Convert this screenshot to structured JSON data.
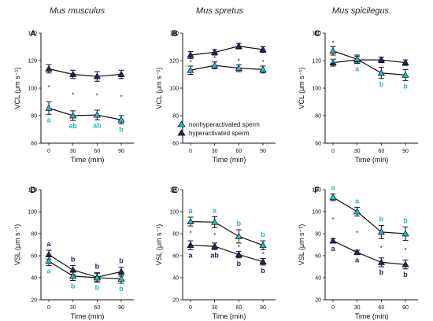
{
  "colors": {
    "nonhyper": "#2bb5c8",
    "hyper": "#23235e",
    "line": "#111111"
  },
  "titles": [
    "Mus musculus",
    "Mus spretus",
    "Mus spicilegus"
  ],
  "legend": {
    "nonhyper_label": "nonhyperactivated sperm",
    "hyper_label": "hyperactivated sperm",
    "placement": "inside panel B, lower-left"
  },
  "chart_data": [
    {
      "panel": "A",
      "type": "line",
      "column": 0,
      "row": 0,
      "xlabel": "Time (min)",
      "ylabel": "VCL (μm s⁻¹)",
      "x": [
        0,
        30,
        60,
        90
      ],
      "ylim": [
        60,
        140
      ],
      "yticks": [
        60,
        80,
        100,
        120,
        140
      ],
      "series": [
        {
          "name": "hyperactivated sperm",
          "key": "hyper",
          "values": [
            114,
            110,
            108.5,
            110
          ],
          "errors": [
            3,
            3,
            3.5,
            3
          ],
          "labels": [
            "",
            "",
            "",
            ""
          ]
        },
        {
          "name": "nonhyperactivated sperm",
          "key": "nonhyper",
          "values": [
            85.5,
            80,
            80.5,
            77
          ],
          "errors": [
            4.5,
            3.5,
            3.5,
            3
          ],
          "labels": [
            "a",
            "ab",
            "ab",
            "b"
          ]
        }
      ],
      "stars": [
        true,
        true,
        true,
        true
      ],
      "stars_pos": "between"
    },
    {
      "panel": "B",
      "type": "line",
      "column": 1,
      "row": 0,
      "xlabel": "Time (min)",
      "ylabel": "VCL (μm s⁻¹)",
      "x": [
        0,
        30,
        60,
        90
      ],
      "ylim": [
        60,
        140
      ],
      "yticks": [
        60,
        80,
        100,
        120,
        140
      ],
      "series": [
        {
          "name": "hyperactivated sperm",
          "key": "hyper",
          "values": [
            124,
            126,
            130.5,
            128
          ],
          "errors": [
            2.5,
            2,
            2,
            2
          ],
          "labels": [
            "",
            "",
            "",
            ""
          ]
        },
        {
          "name": "nonhyperactivated sperm",
          "key": "nonhyper",
          "values": [
            113,
            116.5,
            114.5,
            113.5
          ],
          "errors": [
            3,
            2.5,
            2.5,
            2.5
          ],
          "labels": [
            "",
            "",
            "",
            ""
          ]
        }
      ],
      "stars": [
        true,
        true,
        true,
        true
      ],
      "stars_pos": "between"
    },
    {
      "panel": "C",
      "type": "line",
      "column": 2,
      "row": 0,
      "xlabel": "Time (min)",
      "ylabel": "VCL (μm s⁻¹)",
      "x": [
        0,
        30,
        60,
        90
      ],
      "ylim": [
        60,
        140
      ],
      "yticks": [
        60,
        80,
        100,
        120,
        140
      ],
      "series": [
        {
          "name": "hyperactivated sperm",
          "key": "hyper",
          "values": [
            118.5,
            120.5,
            120.5,
            118.5
          ],
          "errors": [
            2.5,
            2.5,
            2,
            2
          ],
          "labels": [
            "",
            "",
            "",
            ""
          ]
        },
        {
          "name": "nonhyperactivated sperm",
          "key": "nonhyper",
          "values": [
            127,
            121,
            111,
            109.5
          ],
          "errors": [
            3,
            3,
            4,
            4
          ],
          "labels": [
            "a",
            "a",
            "b",
            "b"
          ]
        }
      ],
      "stars": [
        true,
        false,
        false,
        true
      ],
      "stars_pos": "between"
    },
    {
      "panel": "D",
      "type": "line",
      "column": 0,
      "row": 1,
      "xlabel": "Time (min)",
      "ylabel": "VSL (μm s⁻¹)",
      "x": [
        0,
        30,
        60,
        90
      ],
      "ylim": [
        20,
        120
      ],
      "yticks": [
        20,
        40,
        60,
        80,
        100,
        120
      ],
      "series": [
        {
          "name": "hyperactivated sperm",
          "key": "hyper",
          "values": [
            61,
            47,
            40.5,
            45.5
          ],
          "errors": [
            4,
            4,
            4,
            4
          ],
          "labels": [
            "a",
            "b",
            "b",
            "b"
          ]
        },
        {
          "name": "nonhyperactivated sperm",
          "key": "nonhyper",
          "values": [
            55,
            41.5,
            40,
            39
          ],
          "errors": [
            4,
            4,
            4,
            4
          ],
          "labels": [
            "a",
            "b",
            "b",
            "b"
          ]
        }
      ],
      "stars": [
        false,
        false,
        false,
        false
      ],
      "stars_pos": "none"
    },
    {
      "panel": "E",
      "type": "line",
      "column": 1,
      "row": 1,
      "xlabel": "Time (min)",
      "ylabel": "VSL (μm s⁻¹)",
      "x": [
        0,
        30,
        60,
        90
      ],
      "ylim": [
        20,
        120
      ],
      "yticks": [
        20,
        40,
        60,
        80,
        100,
        120
      ],
      "series": [
        {
          "name": "nonhyperactivated sperm",
          "key": "nonhyper",
          "values": [
            91,
            90.5,
            77.5,
            69.5
          ],
          "errors": [
            4,
            5,
            6,
            4
          ],
          "labels": [
            "a",
            "a",
            "b",
            "b"
          ]
        },
        {
          "name": "hyperactivated sperm",
          "key": "hyper",
          "values": [
            69.5,
            68.5,
            61,
            54.5
          ],
          "errors": [
            4,
            3,
            3,
            3
          ],
          "labels": [
            "a",
            "ab",
            "b",
            "b"
          ]
        }
      ],
      "stars": [
        true,
        true,
        true,
        true
      ],
      "stars_pos": "between"
    },
    {
      "panel": "F",
      "type": "line",
      "column": 2,
      "row": 1,
      "xlabel": "Time (min)",
      "ylabel": "VSL (μm s⁻¹)",
      "x": [
        0,
        30,
        60,
        90
      ],
      "ylim": [
        20,
        120
      ],
      "yticks": [
        20,
        40,
        60,
        80,
        100,
        120
      ],
      "series": [
        {
          "name": "nonhyperactivated sperm",
          "key": "nonhyper",
          "values": [
            113,
            100,
            81.5,
            80
          ],
          "errors": [
            3,
            4,
            6,
            6
          ],
          "labels": [
            "a",
            "a",
            "b",
            "b"
          ]
        },
        {
          "name": "hyperactivated sperm",
          "key": "hyper",
          "values": [
            73.5,
            63,
            54,
            52
          ],
          "errors": [
            2,
            2,
            4,
            4
          ],
          "labels": [
            "a",
            "a",
            "b",
            "b"
          ]
        }
      ],
      "stars": [
        true,
        true,
        true,
        true
      ],
      "stars_pos": "between"
    }
  ]
}
